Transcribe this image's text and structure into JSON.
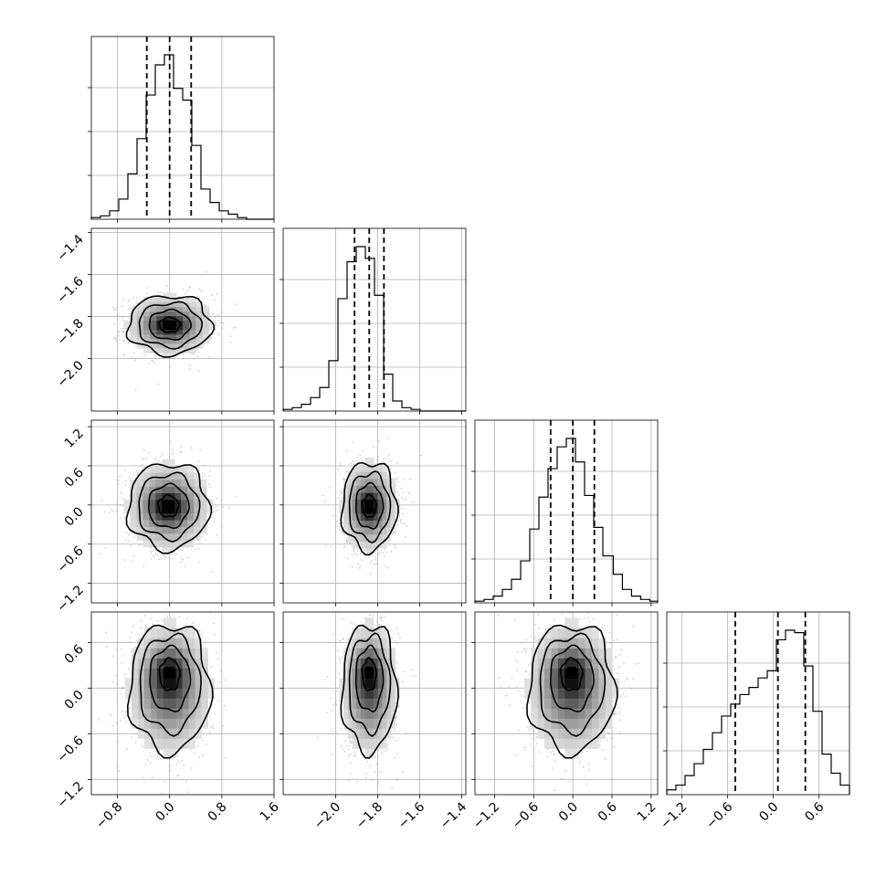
{
  "chart_data": {
    "type": "corner",
    "n_params": 4,
    "grid": true,
    "params": [
      {
        "index": 0,
        "range": [
          -1.2,
          1.6
        ],
        "ticks": [
          -0.8,
          0.0,
          0.8,
          1.6
        ],
        "tick_labels": [
          "−0.8",
          "0.0",
          "0.8",
          "1.6"
        ],
        "quantiles": [
          -0.35,
          0.0,
          0.33
        ],
        "hist": {
          "edges": [
            -1.2,
            -1.06,
            -0.92,
            -0.78,
            -0.64,
            -0.5,
            -0.36,
            -0.22,
            -0.08,
            0.06,
            0.2,
            0.34,
            0.48,
            0.62,
            0.76,
            0.9,
            1.04,
            1.18,
            1.32,
            1.46,
            1.6
          ],
          "counts": [
            1,
            2,
            5,
            12,
            27,
            48,
            74,
            92,
            98,
            78,
            71,
            44,
            18,
            10,
            5,
            3,
            1,
            0,
            0,
            0
          ]
        }
      },
      {
        "index": 1,
        "range": [
          -2.25,
          -1.38
        ],
        "ticks": [
          -2.0,
          -1.8,
          -1.6,
          -1.4
        ],
        "tick_labels": [
          "−2.0",
          "−1.8",
          "−1.6",
          "−1.4"
        ],
        "quantiles": [
          -1.91,
          -1.84,
          -1.77
        ],
        "hist": {
          "edges": [
            -2.25,
            -2.2065,
            -2.163,
            -2.1195,
            -2.076,
            -2.0325,
            -1.989,
            -1.9455,
            -1.902,
            -1.8585,
            -1.815,
            -1.7715,
            -1.728,
            -1.6845,
            -1.641,
            -1.5975,
            -1.554,
            -1.5105,
            -1.467,
            -1.4235,
            -1.38
          ],
          "counts": [
            1,
            2,
            4,
            8,
            14,
            30,
            67,
            89,
            98,
            91,
            69,
            22,
            6,
            2,
            1,
            0,
            0,
            0,
            0,
            0
          ]
        }
      },
      {
        "index": 2,
        "range": [
          -1.5,
          1.3
        ],
        "ticks": [
          -1.2,
          -0.6,
          0.0,
          0.6,
          1.2
        ],
        "tick_labels": [
          "−1.2",
          "−0.6",
          "0.0",
          "0.6",
          "1.2"
        ],
        "quantiles": [
          -0.34,
          0.0,
          0.33
        ],
        "hist": {
          "edges": [
            -1.5,
            -1.36,
            -1.22,
            -1.08,
            -0.94,
            -0.8,
            -0.66,
            -0.52,
            -0.38,
            -0.24,
            -0.1,
            0.04,
            0.18,
            0.32,
            0.46,
            0.62,
            0.76,
            0.9,
            1.04,
            1.18,
            1.3
          ],
          "counts": [
            1,
            2,
            4,
            8,
            14,
            25,
            44,
            63,
            80,
            93,
            98,
            84,
            64,
            45,
            28,
            17,
            8,
            4,
            2,
            1
          ]
        }
      },
      {
        "index": 3,
        "range": [
          -1.4,
          1.0
        ],
        "ticks": [
          -1.2,
          -0.6,
          0.0,
          0.6
        ],
        "tick_labels": [
          "−1.2",
          "−0.6",
          "0.0",
          "0.6"
        ],
        "quantiles": [
          -0.5,
          0.06,
          0.42
        ],
        "hist": {
          "edges": [
            -1.4,
            -1.28,
            -1.16,
            -1.04,
            -0.92,
            -0.8,
            -0.68,
            -0.56,
            -0.44,
            -0.32,
            -0.2,
            -0.08,
            0.04,
            0.16,
            0.28,
            0.4,
            0.52,
            0.64,
            0.76,
            0.88,
            1.0
          ],
          "counts": [
            2,
            4,
            8,
            13,
            19,
            26,
            33,
            38,
            42,
            45,
            49,
            52,
            65,
            69,
            68,
            54,
            35,
            17,
            9,
            4
          ]
        }
      }
    ],
    "pairs": [
      {
        "x": 0,
        "y": 1,
        "center": [
          0.0,
          -1.84
        ],
        "sigma": [
          0.32,
          0.07
        ],
        "peak_offset": [
          0.0,
          0.0
        ]
      },
      {
        "x": 0,
        "y": 2,
        "center": [
          -0.02,
          -0.02
        ],
        "sigma": [
          0.31,
          0.33
        ],
        "peak_offset": [
          0.0,
          0.0
        ]
      },
      {
        "x": 1,
        "y": 2,
        "center": [
          -1.84,
          -0.02
        ],
        "sigma": [
          0.065,
          0.34
        ],
        "peak_offset": [
          0.0,
          0.0
        ]
      },
      {
        "x": 0,
        "y": 3,
        "center": [
          0.0,
          0.0
        ],
        "sigma": [
          0.31,
          0.42
        ],
        "peak_offset": [
          0.0,
          0.22
        ]
      },
      {
        "x": 1,
        "y": 3,
        "center": [
          -1.84,
          0.0
        ],
        "sigma": [
          0.065,
          0.42
        ],
        "peak_offset": [
          0.0,
          0.22
        ]
      },
      {
        "x": 2,
        "y": 3,
        "center": [
          -0.02,
          0.0
        ],
        "sigma": [
          0.33,
          0.42
        ],
        "peak_offset": [
          0.0,
          0.22
        ]
      }
    ],
    "contour_levels_sigma": [
      0.5,
      1.0,
      1.5,
      2.0
    ]
  }
}
